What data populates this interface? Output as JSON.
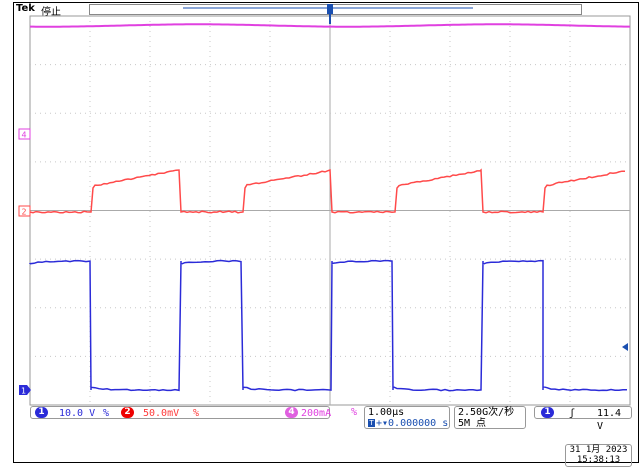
{
  "header": {
    "brand": "Tek",
    "run_state": "停止",
    "trigger_marker": "T"
  },
  "markers": {
    "ch4": "4",
    "ch2": "2",
    "ch1": "1"
  },
  "status": {
    "ch1_badge": "1",
    "ch1_scale": "10.0 V",
    "ch1_bw": "%",
    "ch2_badge": "2",
    "ch2_scale": "50.0mV",
    "ch2_bw": "%",
    "ch4_badge": "4",
    "ch4_scale": "200mA",
    "ch4_bw": "%",
    "timebase": "1.00µs",
    "trig_pos_icon": "T",
    "trig_pos": "+▾0.000000 s",
    "sample_rate": "2.50G次/秒",
    "record_length": "5M 点",
    "trig_badge": "1",
    "trig_slope": "ʃ",
    "trig_level": "11.4 V"
  },
  "datetime": {
    "date": "31 1月  2023",
    "time": "15:38:13"
  },
  "colors": {
    "ch1": "#2b2bd8",
    "ch2": "#ff4a4a",
    "ch4": "#e040e0",
    "trigger": "#1a4fb0",
    "grid": "#c8c8c8"
  },
  "icons": [
    "trigger-position-icon",
    "rising-edge-icon",
    "channel-marker-icon"
  ]
}
